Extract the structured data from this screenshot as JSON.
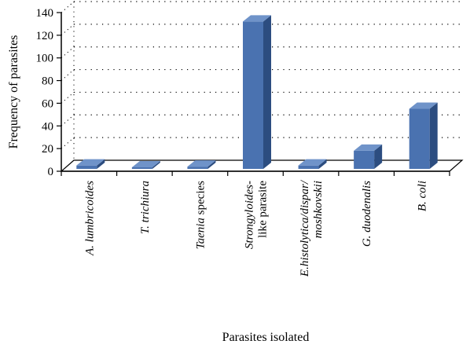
{
  "chart_data": {
    "type": "bar",
    "title": "",
    "xlabel": "Parasites isolated",
    "ylabel": "Frequency of parasites",
    "ylim": [
      0,
      140
    ],
    "yticks": [
      "0",
      "20",
      "40",
      "60",
      "80",
      "100",
      "120",
      "140"
    ],
    "grid": "dotted horizontal",
    "legend": "none",
    "categories": [
      "A. lumbricoides",
      "T. trichiura",
      "Taenia species",
      "Strongyloides-like parasite",
      "E.histolytica/dispar/moshkovskii",
      "G. duodenalis",
      "B. coli"
    ],
    "category_label_lines": [
      [
        [
          {
            "t": "A. lumbricoides",
            "i": true
          }
        ]
      ],
      [
        [
          {
            "t": "T. trichiura",
            "i": true
          }
        ]
      ],
      [
        [
          {
            "t": "Taenia",
            "i": true
          },
          {
            "t": " species",
            "i": false
          }
        ]
      ],
      [
        [
          {
            "t": "Strongyloides",
            "i": true
          },
          {
            "t": "-",
            "i": false
          }
        ],
        [
          {
            "t": "like parasite",
            "i": false
          }
        ]
      ],
      [
        [
          {
            "t": "E.histolytica/dispar/",
            "i": true
          }
        ],
        [
          {
            "t": "moshkovskii",
            "i": true
          }
        ]
      ],
      [
        [
          {
            "t": "G. duodenalis",
            "i": true
          }
        ]
      ],
      [
        [
          {
            "t": "B. coli",
            "i": true
          }
        ]
      ]
    ],
    "values": [
      3,
      1,
      2,
      130,
      3,
      16,
      53
    ],
    "colors": {
      "bar_front": "#4a72b0",
      "bar_side": "#2c4d80",
      "bar_top": "#6f93c9",
      "grid": "#000000",
      "axis": "#000000"
    }
  }
}
